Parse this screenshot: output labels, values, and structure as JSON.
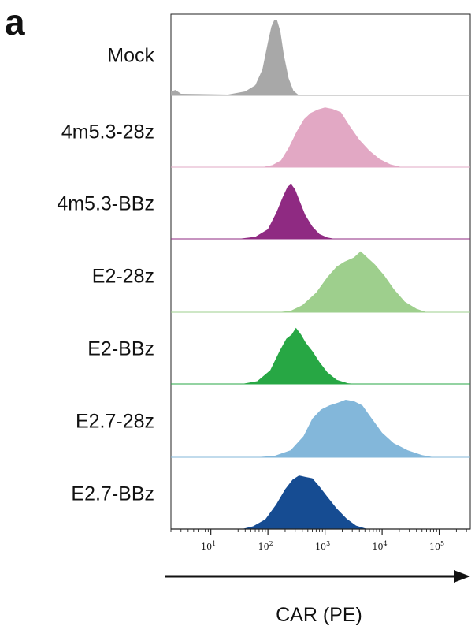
{
  "panel_letter": "a",
  "chart_data": {
    "type": "area",
    "subtype": "stacked-histogram",
    "xlabel": "CAR (PE)",
    "x_scale": "log",
    "xlim": [
      2,
      350000
    ],
    "xticks": [
      {
        "base": "10",
        "exp": "1",
        "value": 10
      },
      {
        "base": "10",
        "exp": "2",
        "value": 100
      },
      {
        "base": "10",
        "exp": "3",
        "value": 1000
      },
      {
        "base": "10",
        "exp": "4",
        "value": 10000
      },
      {
        "base": "10",
        "exp": "5",
        "value": 100000
      }
    ],
    "series": [
      {
        "name": "Mock",
        "color": "#a8a8a8",
        "points": [
          [
            2,
            0.05
          ],
          [
            2.4,
            0.07
          ],
          [
            3,
            0.02
          ],
          [
            20,
            0.01
          ],
          [
            40,
            0.05
          ],
          [
            60,
            0.13
          ],
          [
            80,
            0.33
          ],
          [
            100,
            0.68
          ],
          [
            115,
            0.88
          ],
          [
            130,
            0.97
          ],
          [
            145,
            0.96
          ],
          [
            165,
            0.82
          ],
          [
            190,
            0.52
          ],
          [
            230,
            0.22
          ],
          [
            280,
            0.06
          ],
          [
            350,
            0.0
          ]
        ]
      },
      {
        "name": "4m5.3-28z",
        "color": "#e2a8c4",
        "points": [
          [
            80,
            0.0
          ],
          [
            120,
            0.03
          ],
          [
            170,
            0.1
          ],
          [
            230,
            0.28
          ],
          [
            320,
            0.52
          ],
          [
            430,
            0.7
          ],
          [
            560,
            0.79
          ],
          [
            750,
            0.84
          ],
          [
            1000,
            0.87
          ],
          [
            1350,
            0.85
          ],
          [
            1900,
            0.8
          ],
          [
            2700,
            0.6
          ],
          [
            4000,
            0.4
          ],
          [
            6000,
            0.24
          ],
          [
            9000,
            0.12
          ],
          [
            14000,
            0.04
          ],
          [
            22000,
            0.0
          ]
        ]
      },
      {
        "name": "4m5.3-BBz",
        "color": "#8f2a82",
        "points": [
          [
            30,
            0.0
          ],
          [
            60,
            0.03
          ],
          [
            100,
            0.14
          ],
          [
            140,
            0.38
          ],
          [
            180,
            0.6
          ],
          [
            220,
            0.76
          ],
          [
            255,
            0.8
          ],
          [
            300,
            0.72
          ],
          [
            360,
            0.55
          ],
          [
            450,
            0.35
          ],
          [
            600,
            0.18
          ],
          [
            800,
            0.07
          ],
          [
            1100,
            0.02
          ],
          [
            1500,
            0.0
          ]
        ]
      },
      {
        "name": "E2-28z",
        "color": "#9ecf8d",
        "points": [
          [
            150,
            0.0
          ],
          [
            250,
            0.02
          ],
          [
            400,
            0.1
          ],
          [
            700,
            0.28
          ],
          [
            1100,
            0.5
          ],
          [
            1600,
            0.65
          ],
          [
            2200,
            0.72
          ],
          [
            3200,
            0.78
          ],
          [
            4200,
            0.87
          ],
          [
            5500,
            0.78
          ],
          [
            7500,
            0.68
          ],
          [
            11000,
            0.52
          ],
          [
            16000,
            0.33
          ],
          [
            25000,
            0.15
          ],
          [
            40000,
            0.05
          ],
          [
            60000,
            0.0
          ]
        ]
      },
      {
        "name": "E2-BBz",
        "color": "#27a744",
        "points": [
          [
            35,
            0.0
          ],
          [
            65,
            0.04
          ],
          [
            110,
            0.2
          ],
          [
            160,
            0.48
          ],
          [
            210,
            0.66
          ],
          [
            260,
            0.72
          ],
          [
            310,
            0.82
          ],
          [
            380,
            0.72
          ],
          [
            460,
            0.6
          ],
          [
            600,
            0.48
          ],
          [
            800,
            0.32
          ],
          [
            1100,
            0.17
          ],
          [
            1600,
            0.06
          ],
          [
            2500,
            0.01
          ],
          [
            3500,
            0.0
          ]
        ]
      },
      {
        "name": "E2.7-28z",
        "color": "#83b7da",
        "points": [
          [
            60,
            0.0
          ],
          [
            130,
            0.02
          ],
          [
            250,
            0.1
          ],
          [
            420,
            0.3
          ],
          [
            600,
            0.55
          ],
          [
            850,
            0.68
          ],
          [
            1200,
            0.74
          ],
          [
            1700,
            0.78
          ],
          [
            2300,
            0.82
          ],
          [
            3200,
            0.8
          ],
          [
            4500,
            0.74
          ],
          [
            6500,
            0.56
          ],
          [
            10000,
            0.35
          ],
          [
            16000,
            0.2
          ],
          [
            28000,
            0.1
          ],
          [
            50000,
            0.03
          ],
          [
            80000,
            0.0
          ]
        ]
      },
      {
        "name": "E2.7-BBz",
        "color": "#164c92",
        "points": [
          [
            35,
            0.0
          ],
          [
            55,
            0.04
          ],
          [
            90,
            0.14
          ],
          [
            140,
            0.36
          ],
          [
            200,
            0.58
          ],
          [
            270,
            0.72
          ],
          [
            350,
            0.78
          ],
          [
            450,
            0.76
          ],
          [
            600,
            0.74
          ],
          [
            800,
            0.62
          ],
          [
            1100,
            0.47
          ],
          [
            1600,
            0.3
          ],
          [
            2400,
            0.15
          ],
          [
            3500,
            0.05
          ],
          [
            5500,
            0.0
          ]
        ]
      }
    ]
  }
}
